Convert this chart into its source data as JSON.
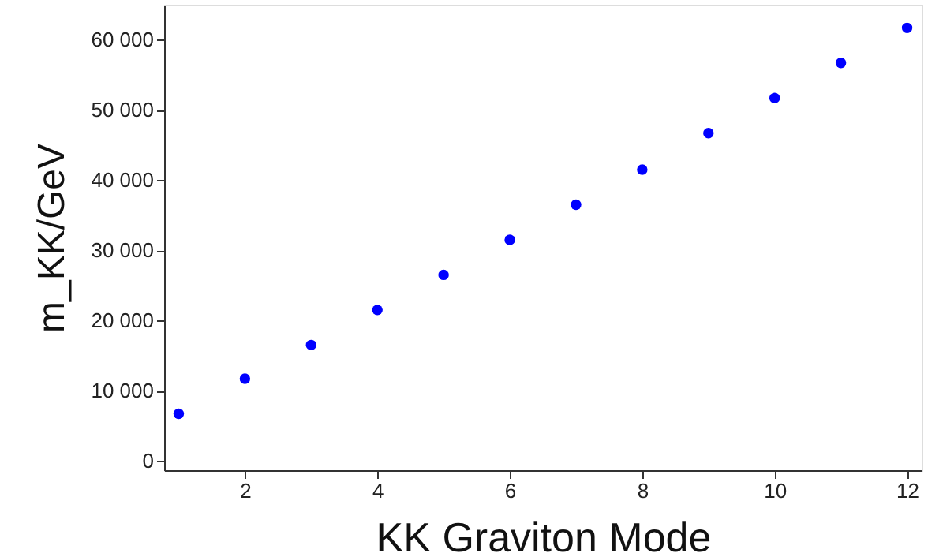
{
  "chart_data": {
    "type": "scatter",
    "xlabel": "KK Graviton Mode",
    "ylabel": "m_KK/GeV",
    "x": [
      1,
      2,
      3,
      4,
      5,
      6,
      7,
      8,
      9,
      10,
      11,
      12
    ],
    "series": [
      {
        "color": "#0000ff",
        "values": [
          6700,
          11700,
          16500,
          21500,
          26500,
          31500,
          36500,
          41500,
          46700,
          51700,
          56700,
          61700
        ]
      }
    ],
    "xlim": [
      0.78,
      12.22
    ],
    "ylim": [
      -1340,
      65000
    ],
    "xticks": [
      2,
      4,
      6,
      8,
      10,
      12
    ],
    "yticks": [
      0,
      {
        "value": 10000,
        "label": "10 000"
      },
      {
        "value": 20000,
        "label": "20 000"
      },
      {
        "value": 30000,
        "label": "30 000"
      },
      {
        "value": 40000,
        "label": "40 000"
      },
      {
        "value": 50000,
        "label": "50 000"
      },
      {
        "value": 60000,
        "label": "60 000"
      }
    ],
    "marker": "circle",
    "grid": false,
    "legend": false
  }
}
